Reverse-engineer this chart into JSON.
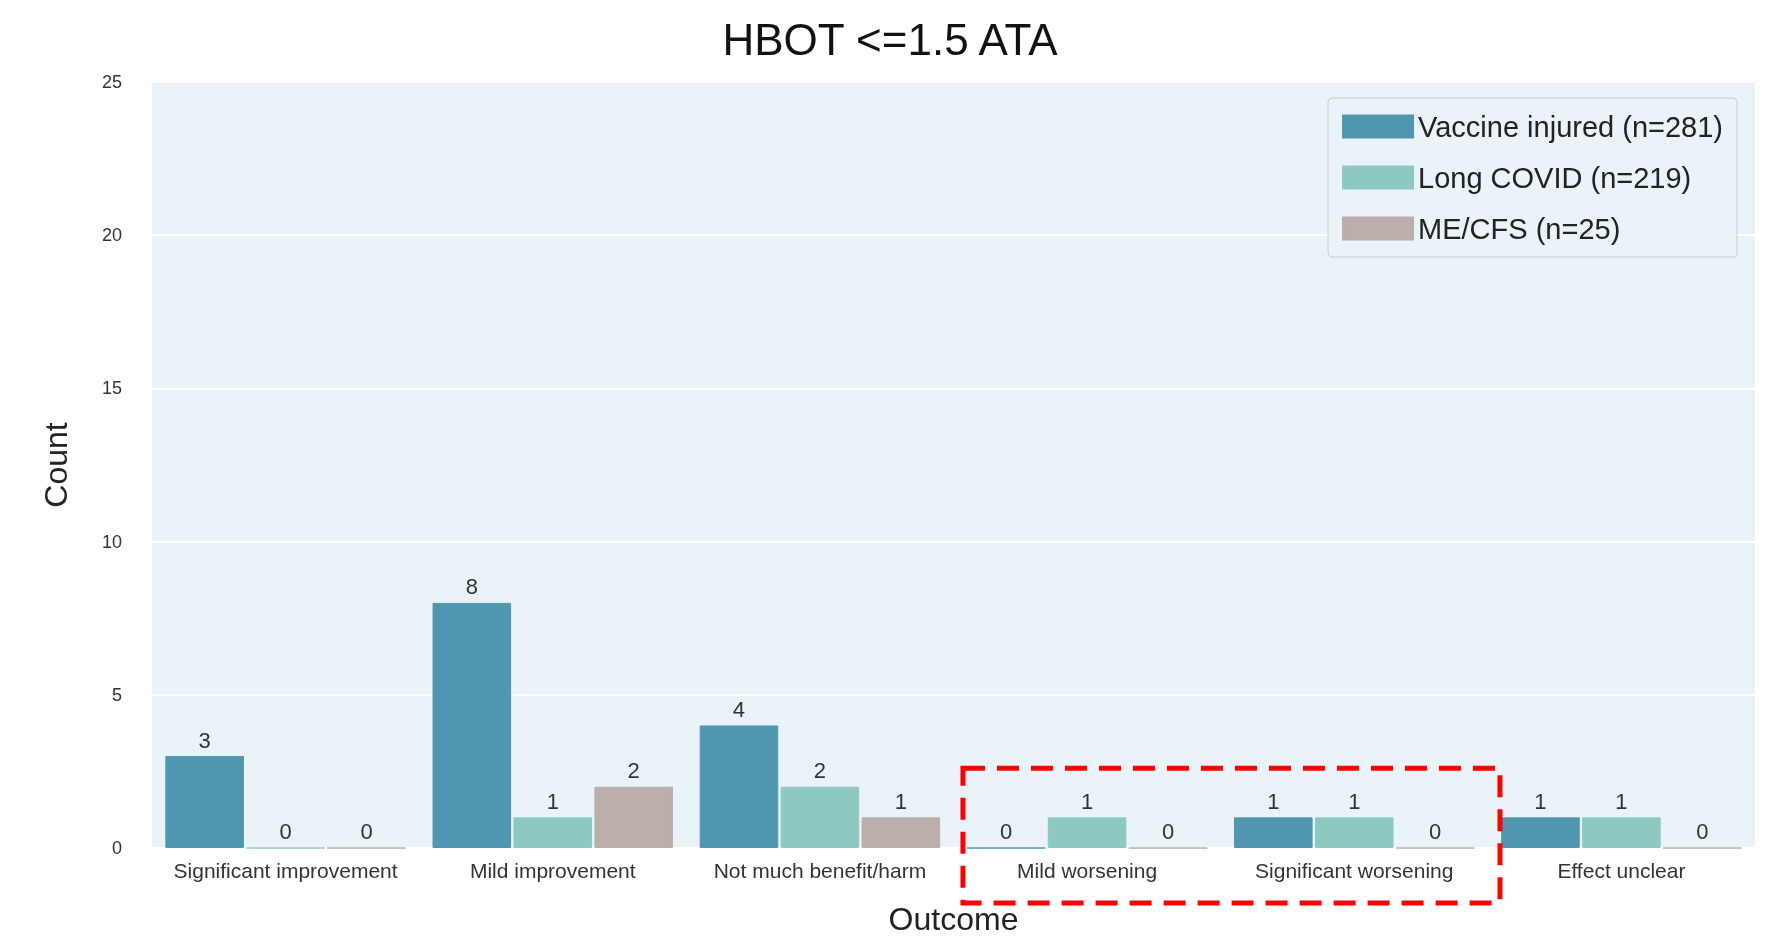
{
  "chart_data": {
    "type": "bar",
    "title": "HBOT <=1.5 ATA",
    "xlabel": "Outcome",
    "ylabel": "Count",
    "categories": [
      "Significant improvement",
      "Mild improvement",
      "Not much benefit/harm",
      "Mild worsening",
      "Significant worsening",
      "Effect unclear"
    ],
    "series": [
      {
        "name": "Vaccine injured (n=281)",
        "color": "#4f97b1",
        "values": [
          3,
          8,
          4,
          0,
          1,
          1
        ]
      },
      {
        "name": "Long COVID (n=219)",
        "color": "#8ec9c1",
        "values": [
          0,
          1,
          2,
          1,
          1,
          1
        ]
      },
      {
        "name": "ME/CFS (n=25)",
        "color": "#bcaeaa",
        "values": [
          0,
          2,
          1,
          0,
          0,
          0
        ]
      }
    ],
    "ylim": [
      0,
      25
    ],
    "yticks": [
      0,
      5,
      10,
      15,
      20,
      25
    ],
    "grid": "y",
    "legend": "top right",
    "data_labels": true
  }
}
